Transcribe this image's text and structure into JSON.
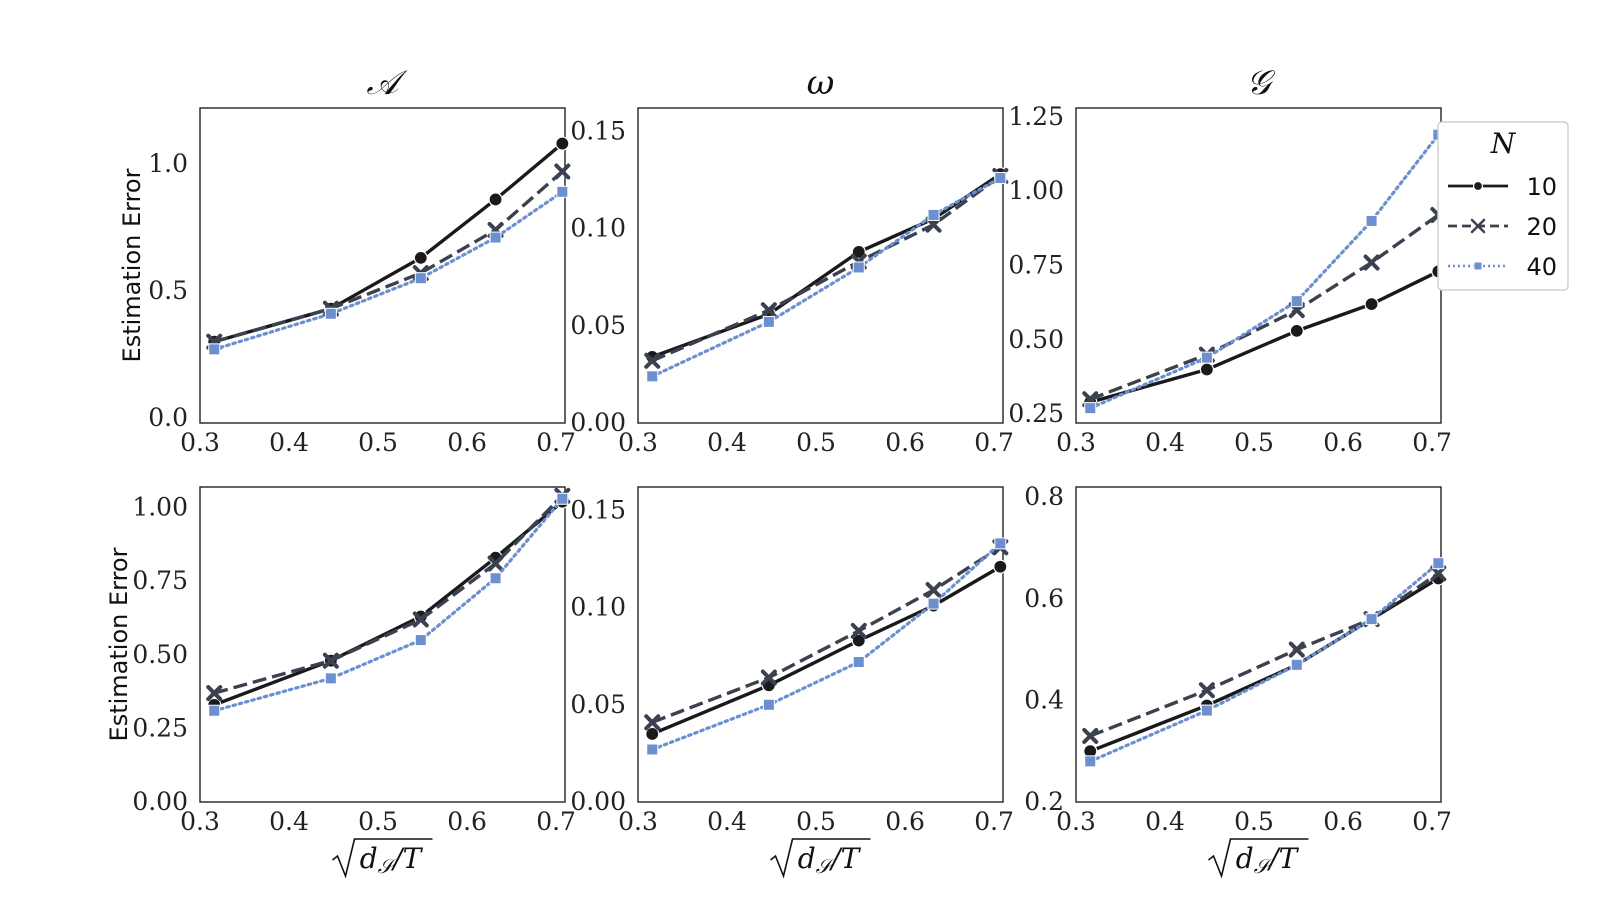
{
  "figure": {
    "ylabel": "Estimation Error",
    "xlabel": "√d_S/T",
    "column_titles": [
      "𝒜",
      "ω",
      "𝒢"
    ]
  },
  "legend": {
    "title": "N",
    "entries": [
      "10",
      "20",
      "40"
    ],
    "placement": "right"
  },
  "styles": {
    "10": {
      "color": "#1a1a1a",
      "dash": "solid",
      "marker": "circle"
    },
    "20": {
      "color": "#3c4150",
      "dash": "dashed",
      "marker": "x"
    },
    "40": {
      "color": "#6b8fcf",
      "dash": "dotted",
      "marker": "square"
    }
  },
  "chart_data": [
    {
      "type": "line",
      "title": "𝒜",
      "ylabel": "Estimation Error",
      "xlabel": "",
      "xlim": [
        0.3,
        0.71
      ],
      "ylim": [
        -0.02,
        1.22
      ],
      "xticks": [
        "0.3",
        "0.4",
        "0.5",
        "0.6",
        "0.7"
      ],
      "yticks": [
        "0.0",
        "0.5",
        "1.0"
      ],
      "x": [
        0.316,
        0.447,
        0.548,
        0.632,
        0.707
      ],
      "series": [
        {
          "name": "10",
          "values": [
            0.3,
            0.43,
            0.63,
            0.86,
            1.08
          ]
        },
        {
          "name": "20",
          "values": [
            0.3,
            0.43,
            0.57,
            0.74,
            0.97
          ]
        },
        {
          "name": "40",
          "values": [
            0.27,
            0.41,
            0.55,
            0.71,
            0.89
          ]
        }
      ]
    },
    {
      "type": "line",
      "title": "ω",
      "ylabel": "",
      "xlabel": "",
      "xlim": [
        0.3,
        0.71
      ],
      "ylim": [
        0.0,
        0.162
      ],
      "xticks": [
        "0.3",
        "0.4",
        "0.5",
        "0.6",
        "0.7"
      ],
      "yticks": [
        "0.00",
        "0.05",
        "0.10",
        "0.15"
      ],
      "x": [
        0.316,
        0.447,
        0.548,
        0.632,
        0.707
      ],
      "series": [
        {
          "name": "10",
          "values": [
            0.034,
            0.056,
            0.088,
            0.105,
            0.128
          ]
        },
        {
          "name": "20",
          "values": [
            0.032,
            0.058,
            0.083,
            0.102,
            0.127
          ]
        },
        {
          "name": "40",
          "values": [
            0.024,
            0.052,
            0.08,
            0.107,
            0.126
          ]
        }
      ]
    },
    {
      "type": "line",
      "title": "𝒢",
      "ylabel": "",
      "xlabel": "",
      "xlim": [
        0.3,
        0.71
      ],
      "ylim": [
        0.22,
        1.28
      ],
      "xticks": [
        "0.3",
        "0.4",
        "0.5",
        "0.6",
        "0.7"
      ],
      "yticks": [
        "0.25",
        "0.50",
        "0.75",
        "1.00",
        "1.25"
      ],
      "x": [
        0.316,
        0.447,
        0.548,
        0.632,
        0.707
      ],
      "series": [
        {
          "name": "10",
          "values": [
            0.29,
            0.4,
            0.53,
            0.62,
            0.73
          ]
        },
        {
          "name": "20",
          "values": [
            0.3,
            0.45,
            0.6,
            0.76,
            0.92
          ]
        },
        {
          "name": "40",
          "values": [
            0.27,
            0.44,
            0.63,
            0.9,
            1.19
          ]
        }
      ]
    },
    {
      "type": "line",
      "title": "",
      "ylabel": "Estimation Error",
      "xlabel": "√d_S/T",
      "xlim": [
        0.3,
        0.71
      ],
      "ylim": [
        0.0,
        1.07
      ],
      "xticks": [
        "0.3",
        "0.4",
        "0.5",
        "0.6",
        "0.7"
      ],
      "yticks": [
        "0.00",
        "0.25",
        "0.50",
        "0.75",
        "1.00"
      ],
      "x": [
        0.316,
        0.447,
        0.548,
        0.632,
        0.707
      ],
      "series": [
        {
          "name": "10",
          "values": [
            0.33,
            0.48,
            0.63,
            0.83,
            1.02
          ]
        },
        {
          "name": "20",
          "values": [
            0.37,
            0.48,
            0.62,
            0.81,
            1.04
          ]
        },
        {
          "name": "40",
          "values": [
            0.31,
            0.42,
            0.55,
            0.76,
            1.03
          ]
        }
      ]
    },
    {
      "type": "line",
      "title": "",
      "ylabel": "",
      "xlabel": "√d_S/T",
      "xlim": [
        0.3,
        0.71
      ],
      "ylim": [
        0.0,
        0.162
      ],
      "xticks": [
        "0.3",
        "0.4",
        "0.5",
        "0.6",
        "0.7"
      ],
      "yticks": [
        "0.00",
        "0.05",
        "0.10",
        "0.15"
      ],
      "x": [
        0.316,
        0.447,
        0.548,
        0.632,
        0.707
      ],
      "series": [
        {
          "name": "10",
          "values": [
            0.035,
            0.06,
            0.083,
            0.101,
            0.121
          ]
        },
        {
          "name": "20",
          "values": [
            0.041,
            0.064,
            0.088,
            0.109,
            0.131
          ]
        },
        {
          "name": "40",
          "values": [
            0.027,
            0.05,
            0.072,
            0.102,
            0.133
          ]
        }
      ]
    },
    {
      "type": "line",
      "title": "",
      "ylabel": "",
      "xlabel": "√d_S/T",
      "xlim": [
        0.3,
        0.71
      ],
      "ylim": [
        0.2,
        0.82
      ],
      "xticks": [
        "0.3",
        "0.4",
        "0.5",
        "0.6",
        "0.7"
      ],
      "yticks": [
        "0.2",
        "0.4",
        "0.6",
        "0.8"
      ],
      "x": [
        0.316,
        0.447,
        0.548,
        0.632,
        0.707
      ],
      "series": [
        {
          "name": "10",
          "values": [
            0.3,
            0.39,
            0.47,
            0.56,
            0.64
          ]
        },
        {
          "name": "20",
          "values": [
            0.33,
            0.42,
            0.5,
            0.56,
            0.65
          ]
        },
        {
          "name": "40",
          "values": [
            0.28,
            0.38,
            0.47,
            0.56,
            0.67
          ]
        }
      ]
    }
  ]
}
